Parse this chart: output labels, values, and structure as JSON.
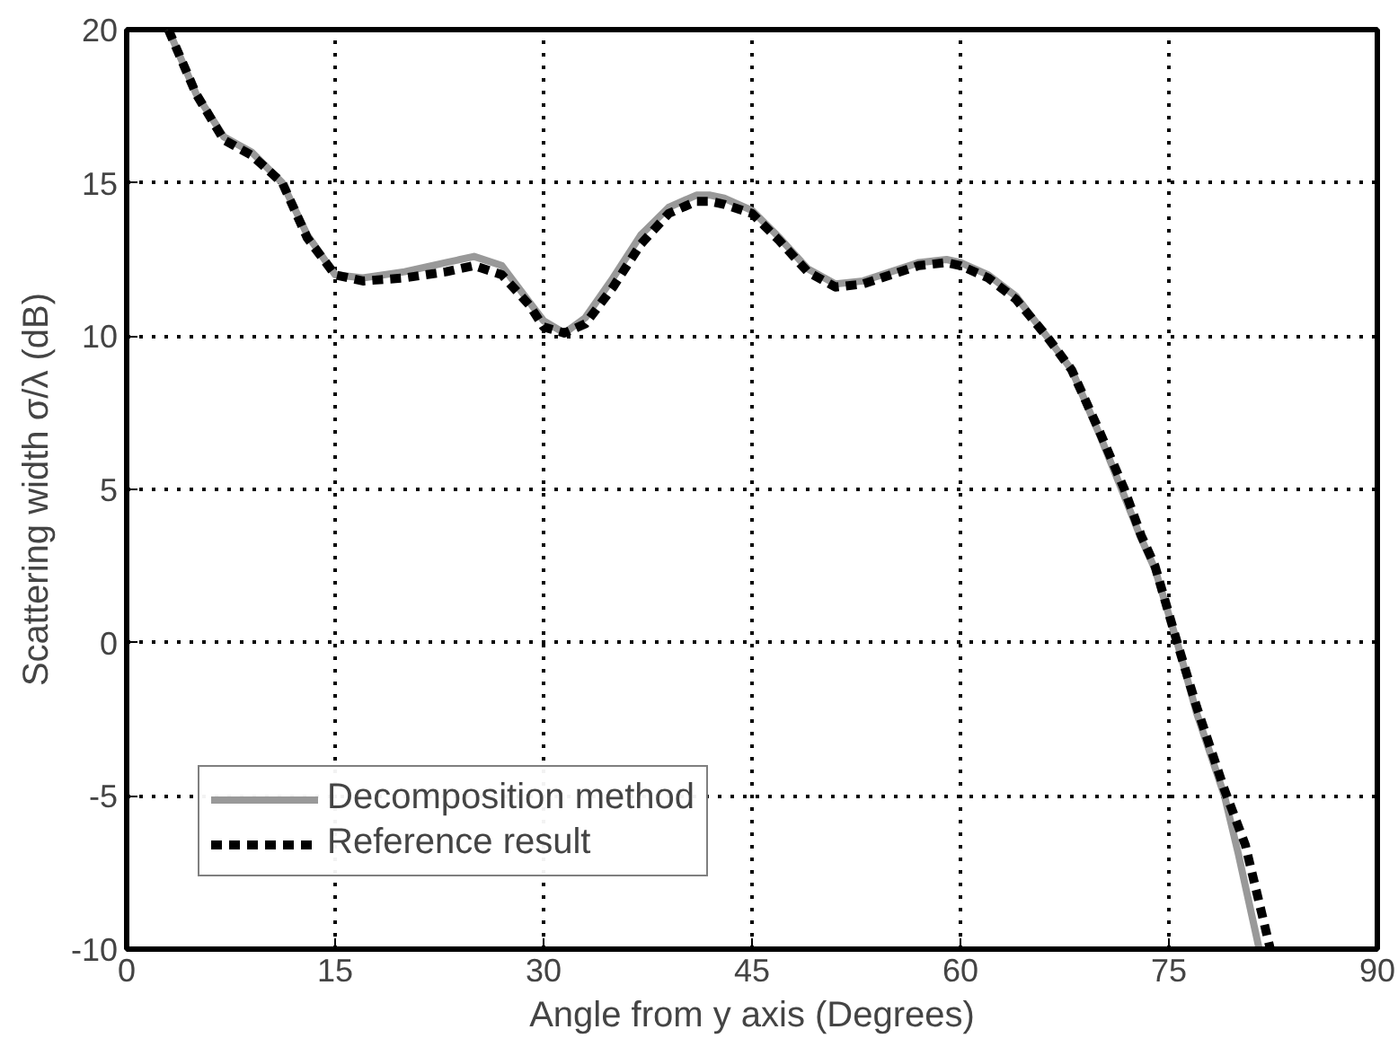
{
  "chart_data": {
    "type": "line",
    "xlabel": "Angle from y axis (Degrees)",
    "ylabel": "Scattering width σ/λ (dB)",
    "xlim": [
      0,
      90
    ],
    "ylim": [
      -10,
      20
    ],
    "xticks": [
      0,
      15,
      30,
      45,
      60,
      75,
      90
    ],
    "yticks": [
      -10,
      -5,
      0,
      5,
      10,
      15,
      20
    ],
    "grid": true,
    "legend": "bottom left",
    "series": [
      {
        "name": "Decomposition method",
        "color": "#999999",
        "line_style": "solid",
        "x": [
          3,
          5,
          7,
          9,
          11.2,
          13,
          15,
          17,
          20,
          23,
          25,
          27,
          29,
          30,
          31.5,
          33,
          35,
          37,
          39,
          41,
          42,
          43,
          45,
          47,
          49,
          51,
          53,
          55,
          57,
          59,
          60,
          62,
          64,
          66.2,
          68,
          70,
          71.6,
          73,
          74,
          75.6,
          77,
          79,
          80,
          81.5
        ],
        "values": [
          20,
          17.9,
          16.5,
          16,
          15,
          13.3,
          12,
          11.9,
          12.1,
          12.4,
          12.6,
          12.3,
          11.1,
          10.5,
          10.1,
          10.6,
          11.9,
          13.3,
          14.2,
          14.6,
          14.6,
          14.5,
          14.1,
          13.2,
          12.2,
          11.7,
          11.8,
          12.1,
          12.4,
          12.5,
          12.4,
          12,
          11.3,
          10,
          8.9,
          6.8,
          5,
          3.4,
          2.4,
          0,
          -2.3,
          -5,
          -6.9,
          -10
        ]
      },
      {
        "name": "Reference result",
        "color": "#000000",
        "line_style": "dashed",
        "x": [
          3,
          5,
          7,
          9,
          11.2,
          13,
          15,
          17,
          20,
          23,
          25,
          27,
          29,
          30,
          31.5,
          33,
          35,
          37,
          39,
          41,
          42,
          43,
          45,
          47,
          49,
          51,
          53,
          55,
          57,
          59,
          60,
          62,
          64,
          66.2,
          68,
          70,
          71.8,
          73,
          74,
          75.6,
          77,
          79,
          80.5,
          82.3
        ],
        "values": [
          20,
          17.9,
          16.4,
          15.9,
          15,
          13.2,
          12,
          11.8,
          11.9,
          12.1,
          12.3,
          12,
          11,
          10.3,
          10.1,
          10.4,
          11.6,
          13,
          14,
          14.4,
          14.4,
          14.3,
          14,
          13.1,
          12.1,
          11.6,
          11.7,
          12,
          12.3,
          12.4,
          12.3,
          11.9,
          11.2,
          10,
          8.9,
          6.9,
          5,
          3.5,
          2.5,
          0,
          -2.1,
          -4.8,
          -6.6,
          -10
        ]
      }
    ]
  }
}
